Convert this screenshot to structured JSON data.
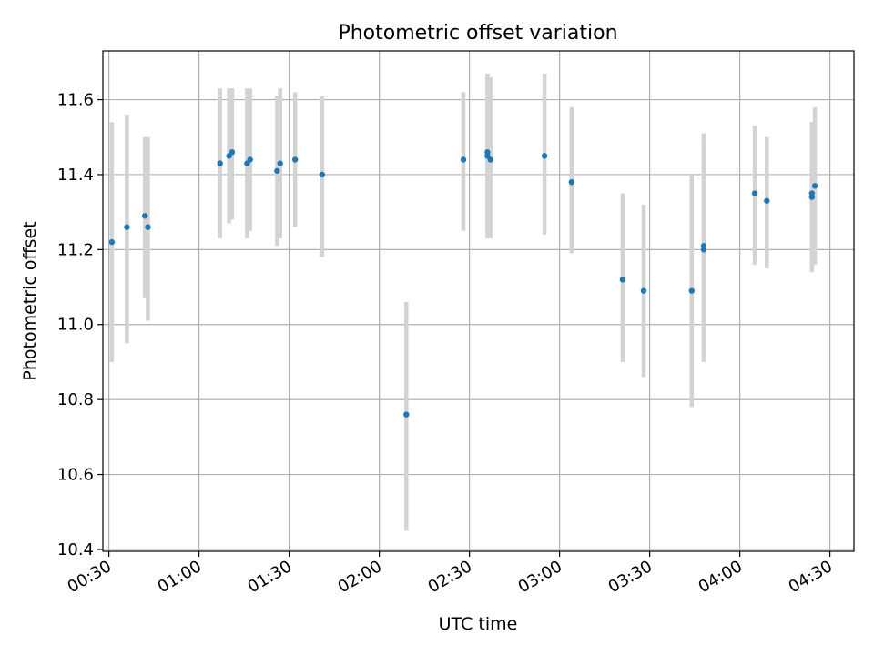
{
  "chart_data": {
    "type": "scatter",
    "title": "Photometric offset variation",
    "xlabel": "UTC time",
    "ylabel": "Photometric offset",
    "x_unit": "time HH:MM (UTC)",
    "xlim": [
      "00:28",
      "04:38"
    ],
    "ylim": [
      10.395,
      11.73
    ],
    "x_ticks": [
      "00:30",
      "01:00",
      "01:30",
      "02:00",
      "02:30",
      "03:00",
      "03:30",
      "04:00",
      "04:30"
    ],
    "y_ticks": [
      "10.4",
      "10.6",
      "10.8",
      "11.0",
      "11.2",
      "11.4",
      "11.6"
    ],
    "grid": true,
    "legend": "none",
    "colors": {
      "points": "#1f77b4",
      "error_bars": "#d3d3d3",
      "grid": "#b0b0b0"
    },
    "series": [
      {
        "points": [
          {
            "x": "00:31",
            "y": 11.22,
            "ylow": 10.9,
            "yhigh": 11.54
          },
          {
            "x": "00:36",
            "y": 11.26,
            "ylow": 10.95,
            "yhigh": 11.56
          },
          {
            "x": "00:42",
            "y": 11.29,
            "ylow": 11.07,
            "yhigh": 11.5
          },
          {
            "x": "00:43",
            "y": 11.26,
            "ylow": 11.01,
            "yhigh": 11.5
          },
          {
            "x": "01:07",
            "y": 11.43,
            "ylow": 11.23,
            "yhigh": 11.63
          },
          {
            "x": "01:10",
            "y": 11.45,
            "ylow": 11.27,
            "yhigh": 11.63
          },
          {
            "x": "01:11",
            "y": 11.46,
            "ylow": 11.28,
            "yhigh": 11.63
          },
          {
            "x": "01:16",
            "y": 11.43,
            "ylow": 11.23,
            "yhigh": 11.63
          },
          {
            "x": "01:17",
            "y": 11.44,
            "ylow": 11.25,
            "yhigh": 11.63
          },
          {
            "x": "01:26",
            "y": 11.41,
            "ylow": 11.21,
            "yhigh": 11.61
          },
          {
            "x": "01:27",
            "y": 11.43,
            "ylow": 11.23,
            "yhigh": 11.63
          },
          {
            "x": "01:32",
            "y": 11.44,
            "ylow": 11.26,
            "yhigh": 11.62
          },
          {
            "x": "01:41",
            "y": 11.4,
            "ylow": 11.18,
            "yhigh": 11.61
          },
          {
            "x": "02:09",
            "y": 10.76,
            "ylow": 10.45,
            "yhigh": 11.06
          },
          {
            "x": "02:28",
            "y": 11.44,
            "ylow": 11.25,
            "yhigh": 11.62
          },
          {
            "x": "02:36",
            "y": 11.46,
            "ylow": 11.25,
            "yhigh": 11.67
          },
          {
            "x": "02:36",
            "y": 11.45,
            "ylow": 11.23,
            "yhigh": 11.66
          },
          {
            "x": "02:37",
            "y": 11.44,
            "ylow": 11.23,
            "yhigh": 11.66
          },
          {
            "x": "02:55",
            "y": 11.45,
            "ylow": 11.24,
            "yhigh": 11.67
          },
          {
            "x": "03:04",
            "y": 11.38,
            "ylow": 11.19,
            "yhigh": 11.58
          },
          {
            "x": "03:21",
            "y": 11.12,
            "ylow": 10.9,
            "yhigh": 11.35
          },
          {
            "x": "03:28",
            "y": 11.09,
            "ylow": 10.86,
            "yhigh": 11.32
          },
          {
            "x": "03:44",
            "y": 11.09,
            "ylow": 10.78,
            "yhigh": 11.4
          },
          {
            "x": "03:48",
            "y": 11.2,
            "ylow": 10.9,
            "yhigh": 11.49
          },
          {
            "x": "03:48",
            "y": 11.21,
            "ylow": 10.92,
            "yhigh": 11.51
          },
          {
            "x": "04:05",
            "y": 11.35,
            "ylow": 11.16,
            "yhigh": 11.53
          },
          {
            "x": "04:09",
            "y": 11.33,
            "ylow": 11.15,
            "yhigh": 11.5
          },
          {
            "x": "04:24",
            "y": 11.34,
            "ylow": 11.14,
            "yhigh": 11.54
          },
          {
            "x": "04:24",
            "y": 11.35,
            "ylow": 11.15,
            "yhigh": 11.54
          },
          {
            "x": "04:25",
            "y": 11.37,
            "ylow": 11.16,
            "yhigh": 11.58
          }
        ]
      }
    ]
  }
}
